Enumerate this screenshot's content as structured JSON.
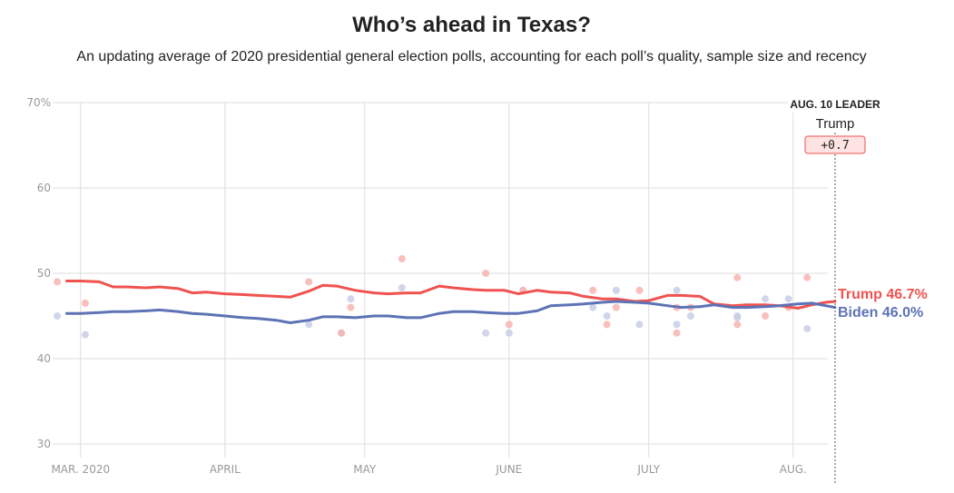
{
  "header": {
    "title": "Who’s ahead in Texas?",
    "subtitle": "An updating average of 2020 presidential general election polls, accounting for each poll’s quality, sample size and recency"
  },
  "leader_box": {
    "heading": "AUG. 10 LEADER",
    "name": "Trump",
    "margin": "+0.7"
  },
  "colors": {
    "trump": "#ef5350",
    "biden": "#5d73b5",
    "trump_dot": "#f8b4b2",
    "biden_dot": "#c8cee5",
    "grid": "#dddddd"
  },
  "chart_data": {
    "type": "line",
    "title": "Who’s ahead in Texas?",
    "y_tick_labels": [
      "70%",
      "60",
      "50",
      "40",
      "30"
    ],
    "y_ticks": [
      70,
      60,
      50,
      40,
      30
    ],
    "ylim": [
      30,
      70
    ],
    "x_range": [
      "2020-02-24",
      "2020-08-10"
    ],
    "x_tick_labels": [
      "MAR. 2020",
      "APRIL",
      "MAY",
      "JUNE",
      "JULY",
      "AUG."
    ],
    "x_ticks": [
      "2020-03-01",
      "2020-04-01",
      "2020-05-01",
      "2020-06-01",
      "2020-07-01",
      "2020-08-01"
    ],
    "end_labels": [
      "Trump 46.7%",
      "Biden 46.0%"
    ],
    "series": [
      {
        "name": "Trump",
        "x": [
          "2020-02-27",
          "2020-03-01",
          "2020-03-05",
          "2020-03-08",
          "2020-03-11",
          "2020-03-15",
          "2020-03-18",
          "2020-03-22",
          "2020-03-25",
          "2020-03-28",
          "2020-04-01",
          "2020-04-05",
          "2020-04-08",
          "2020-04-12",
          "2020-04-15",
          "2020-04-19",
          "2020-04-22",
          "2020-04-25",
          "2020-04-29",
          "2020-05-03",
          "2020-05-06",
          "2020-05-10",
          "2020-05-13",
          "2020-05-17",
          "2020-05-20",
          "2020-05-24",
          "2020-05-27",
          "2020-05-31",
          "2020-06-03",
          "2020-06-07",
          "2020-06-10",
          "2020-06-14",
          "2020-06-17",
          "2020-06-21",
          "2020-06-24",
          "2020-06-28",
          "2020-07-01",
          "2020-07-05",
          "2020-07-08",
          "2020-07-12",
          "2020-07-15",
          "2020-07-19",
          "2020-07-22",
          "2020-07-26",
          "2020-07-29",
          "2020-08-02",
          "2020-08-05",
          "2020-08-08",
          "2020-08-10"
        ],
        "values": [
          49.1,
          49.1,
          49.0,
          48.4,
          48.4,
          48.3,
          48.4,
          48.2,
          47.7,
          47.8,
          47.6,
          47.5,
          47.4,
          47.3,
          47.2,
          47.9,
          48.6,
          48.5,
          48.0,
          47.7,
          47.6,
          47.7,
          47.7,
          48.5,
          48.3,
          48.1,
          48.0,
          48.0,
          47.6,
          48.0,
          47.8,
          47.7,
          47.3,
          47.0,
          47.0,
          46.7,
          46.8,
          47.4,
          47.4,
          47.3,
          46.4,
          46.2,
          46.3,
          46.3,
          46.2,
          45.9,
          46.3,
          46.6,
          46.7
        ]
      },
      {
        "name": "Biden",
        "x": [
          "2020-02-27",
          "2020-03-01",
          "2020-03-05",
          "2020-03-08",
          "2020-03-11",
          "2020-03-15",
          "2020-03-18",
          "2020-03-22",
          "2020-03-25",
          "2020-03-28",
          "2020-04-01",
          "2020-04-05",
          "2020-04-08",
          "2020-04-12",
          "2020-04-15",
          "2020-04-19",
          "2020-04-22",
          "2020-04-25",
          "2020-04-29",
          "2020-05-03",
          "2020-05-06",
          "2020-05-10",
          "2020-05-13",
          "2020-05-17",
          "2020-05-20",
          "2020-05-24",
          "2020-05-27",
          "2020-05-31",
          "2020-06-03",
          "2020-06-07",
          "2020-06-10",
          "2020-06-14",
          "2020-06-17",
          "2020-06-21",
          "2020-06-24",
          "2020-06-28",
          "2020-07-01",
          "2020-07-05",
          "2020-07-08",
          "2020-07-12",
          "2020-07-15",
          "2020-07-19",
          "2020-07-22",
          "2020-07-26",
          "2020-07-29",
          "2020-08-02",
          "2020-08-05",
          "2020-08-08",
          "2020-08-10"
        ],
        "values": [
          45.3,
          45.3,
          45.4,
          45.5,
          45.5,
          45.6,
          45.7,
          45.5,
          45.3,
          45.2,
          45.0,
          44.8,
          44.7,
          44.5,
          44.2,
          44.5,
          44.9,
          44.9,
          44.8,
          45.0,
          45.0,
          44.8,
          44.8,
          45.3,
          45.5,
          45.5,
          45.4,
          45.3,
          45.3,
          45.6,
          46.2,
          46.3,
          46.4,
          46.6,
          46.7,
          46.6,
          46.5,
          46.2,
          46.0,
          46.1,
          46.3,
          46.0,
          46.0,
          46.1,
          46.2,
          46.4,
          46.5,
          46.2,
          46.0
        ]
      }
    ],
    "polls": [
      {
        "x": "2020-02-25",
        "trump": 49,
        "biden": 45
      },
      {
        "x": "2020-03-02",
        "trump": 46.5,
        "biden": 42.8
      },
      {
        "x": "2020-04-19",
        "trump": 49,
        "biden": 44
      },
      {
        "x": "2020-04-26",
        "trump": 43,
        "biden": 43
      },
      {
        "x": "2020-04-28",
        "trump": 46,
        "biden": 47
      },
      {
        "x": "2020-05-09",
        "trump": 51.7,
        "biden": 48.3
      },
      {
        "x": "2020-05-27",
        "trump": 50,
        "biden": 43
      },
      {
        "x": "2020-06-01",
        "trump": 44,
        "biden": 43
      },
      {
        "x": "2020-06-04",
        "trump": 48,
        "biden": 48
      },
      {
        "x": "2020-06-19",
        "trump": 48,
        "biden": 46
      },
      {
        "x": "2020-06-22",
        "trump": 44,
        "biden": 45
      },
      {
        "x": "2020-06-24",
        "trump": 46,
        "biden": 48
      },
      {
        "x": "2020-06-29",
        "trump": 48,
        "biden": 44
      },
      {
        "x": "2020-07-07",
        "trump": 43,
        "biden": 48
      },
      {
        "x": "2020-07-07",
        "trump": 46,
        "biden": 44
      },
      {
        "x": "2020-07-10",
        "trump": 46,
        "biden": 45
      },
      {
        "x": "2020-07-20",
        "trump": 49.5,
        "biden": 45
      },
      {
        "x": "2020-07-20",
        "trump": 44,
        "biden": 44.8
      },
      {
        "x": "2020-07-26",
        "trump": 45,
        "biden": 47
      },
      {
        "x": "2020-07-31",
        "trump": 46,
        "biden": 47
      },
      {
        "x": "2020-08-04",
        "trump": 49.5,
        "biden": 43.5
      }
    ]
  }
}
